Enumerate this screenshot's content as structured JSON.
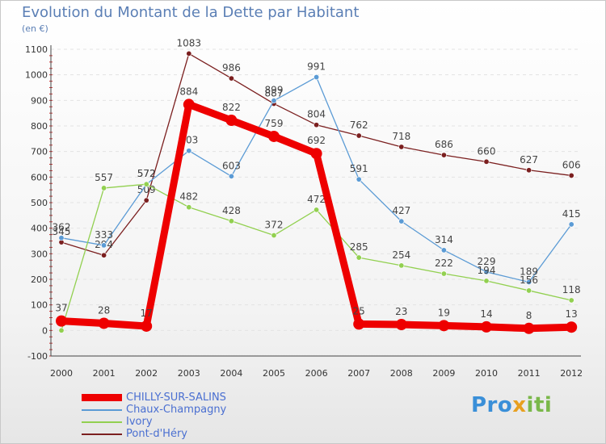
{
  "chart_data": {
    "type": "line",
    "title": "Evolution du Montant de la Dette par Habitant",
    "unit_label": "(en €)",
    "xlabel": "",
    "ylabel": "",
    "ylim": [
      -100,
      1100
    ],
    "y_ticks": [
      -100,
      0,
      100,
      200,
      300,
      400,
      500,
      600,
      700,
      800,
      900,
      1000,
      1100
    ],
    "categories": [
      "2000",
      "2001",
      "2002",
      "2003",
      "2004",
      "2005",
      "2006",
      "2007",
      "2008",
      "2009",
      "2010",
      "2011",
      "2012"
    ],
    "series": [
      {
        "name": "CHILLY-SUR-SALINS",
        "color": "#ee0000",
        "values": [
          37,
          28,
          17,
          884,
          822,
          759,
          692,
          25,
          23,
          19,
          14,
          8,
          13
        ]
      },
      {
        "name": "Chaux-Champagny",
        "color": "#5b9bd5",
        "values": [
          362,
          333,
          572,
          703,
          603,
          899,
          991,
          591,
          427,
          314,
          229,
          189,
          415
        ]
      },
      {
        "name": "Ivory",
        "color": "#92d050",
        "values": [
          0,
          557,
          572,
          482,
          428,
          372,
          472,
          285,
          254,
          222,
          194,
          156,
          118
        ]
      },
      {
        "name": "Pont-d'Héry",
        "color": "#7b1f1f",
        "values": [
          345,
          294,
          509,
          1083,
          986,
          887,
          804,
          762,
          718,
          686,
          660,
          627,
          606
        ]
      }
    ]
  },
  "logo": {
    "p1": "Pro",
    "p2": "x",
    "p3": "iti"
  }
}
